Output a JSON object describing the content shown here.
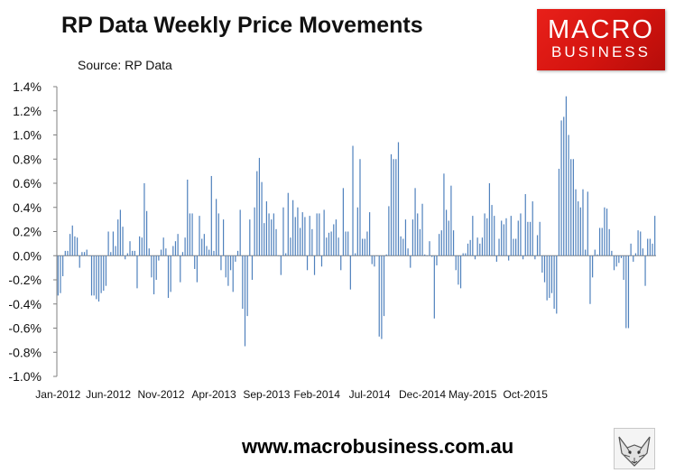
{
  "title": "RP Data Weekly Price Movements",
  "subtitle": "Source: RP Data",
  "logo": {
    "line1": "MACRO",
    "line2": "BUSINESS"
  },
  "footer_url": "www.macrobusiness.com.au",
  "colors": {
    "bar": "#4f81bd",
    "logo_red": "#e01e1a",
    "axis": "#808080"
  },
  "icons": {
    "fox": "fox-sketch-icon"
  },
  "chart_data": {
    "type": "bar",
    "title": "RP Data Weekly Price Movements",
    "source": "Source: RP Data",
    "xlabel": "",
    "ylabel": "",
    "ylim": [
      -1.0,
      1.4
    ],
    "grid": false,
    "legend": "none",
    "y_ticks": [
      "1.4%",
      "1.2%",
      "1.0%",
      "0.8%",
      "0.6%",
      "0.4%",
      "0.2%",
      "0.0%",
      "-0.2%",
      "-0.4%",
      "-0.6%",
      "-0.8%",
      "-1.0%"
    ],
    "x_tick_labels": [
      "Jan-2012",
      "Jun-2012",
      "Nov-2012",
      "Apr-2013",
      "Sep-2013",
      "Feb-2014",
      "Jul-2014",
      "Dec-2014",
      "May-2015",
      "Oct-2015"
    ],
    "x_tick_week_index": [
      0,
      21,
      43,
      65,
      87,
      108,
      130,
      152,
      173,
      195
    ],
    "series": [
      {
        "values": [
          -0.33,
          -0.31,
          -0.17,
          0.04,
          0.04,
          0.18,
          0.25,
          0.16,
          0.15,
          -0.1,
          0.03,
          0.03,
          0.05,
          0.0,
          -0.33,
          -0.33,
          -0.36,
          -0.38,
          -0.31,
          -0.29,
          -0.25,
          0.2,
          0.03,
          0.2,
          0.08,
          0.3,
          0.38,
          0.24,
          -0.03,
          0.02,
          0.12,
          0.04,
          0.04,
          -0.27,
          0.16,
          0.15,
          0.6,
          0.37,
          0.06,
          -0.18,
          -0.32,
          -0.2,
          -0.04,
          0.05,
          0.15,
          0.06,
          -0.35,
          -0.3,
          0.08,
          0.12,
          0.18,
          -0.22,
          0.03,
          0.15,
          0.63,
          0.35,
          0.35,
          -0.11,
          -0.22,
          0.33,
          0.14,
          0.18,
          0.08,
          0.05,
          0.66,
          0.04,
          0.47,
          0.35,
          -0.12,
          0.3,
          -0.18,
          -0.25,
          -0.12,
          -0.3,
          -0.05,
          0.04,
          0.38,
          -0.44,
          -0.75,
          -0.5,
          0.3,
          -0.2,
          0.4,
          0.7,
          0.81,
          0.61,
          0.27,
          0.45,
          0.35,
          0.3,
          0.35,
          0.22,
          0.0,
          -0.16,
          0.4,
          0.02,
          0.52,
          0.15,
          0.46,
          0.32,
          0.4,
          0.23,
          0.36,
          0.32,
          -0.12,
          0.33,
          0.22,
          -0.16,
          0.35,
          0.35,
          -0.09,
          0.38,
          0.15,
          0.19,
          0.2,
          0.26,
          0.3,
          0.15,
          -0.12,
          0.56,
          0.2,
          0.2,
          -0.28,
          0.91,
          0.02,
          0.4,
          0.8,
          0.14,
          0.14,
          0.2,
          0.36,
          -0.07,
          -0.09,
          0.0,
          -0.67,
          -0.69,
          -0.5,
          0.01,
          0.41,
          0.84,
          0.8,
          0.8,
          0.94,
          0.16,
          0.14,
          0.3,
          0.06,
          -0.1,
          0.3,
          0.56,
          0.35,
          0.22,
          0.43,
          0.01,
          0.0,
          0.12,
          -0.01,
          -0.52,
          -0.08,
          0.18,
          0.21,
          0.68,
          0.38,
          0.29,
          0.58,
          0.21,
          -0.12,
          -0.24,
          -0.27,
          0.02,
          0.02,
          0.1,
          0.13,
          0.33,
          -0.03,
          0.15,
          0.1,
          0.15,
          0.35,
          0.31,
          0.6,
          0.42,
          0.33,
          -0.05,
          0.14,
          0.29,
          0.26,
          0.31,
          -0.04,
          0.33,
          0.14,
          0.14,
          0.29,
          0.35,
          -0.03,
          0.51,
          0.28,
          0.28,
          0.45,
          -0.03,
          0.17,
          0.28,
          -0.14,
          -0.22,
          -0.37,
          -0.35,
          -0.31,
          -0.44,
          -0.48,
          0.72,
          1.12,
          1.15,
          1.32,
          1.0,
          0.8,
          0.8,
          0.55,
          0.45,
          0.4,
          0.55,
          0.05,
          0.53,
          -0.4,
          -0.18,
          0.05,
          0.01,
          0.23,
          0.23,
          0.4,
          0.39,
          0.22,
          0.04,
          -0.12,
          -0.09,
          -0.06,
          -0.02,
          -0.2,
          -0.6,
          -0.6,
          0.1,
          -0.05,
          0.02,
          0.21,
          0.2,
          0.06,
          -0.25,
          0.14,
          0.14,
          0.1,
          0.33
        ]
      }
    ]
  }
}
